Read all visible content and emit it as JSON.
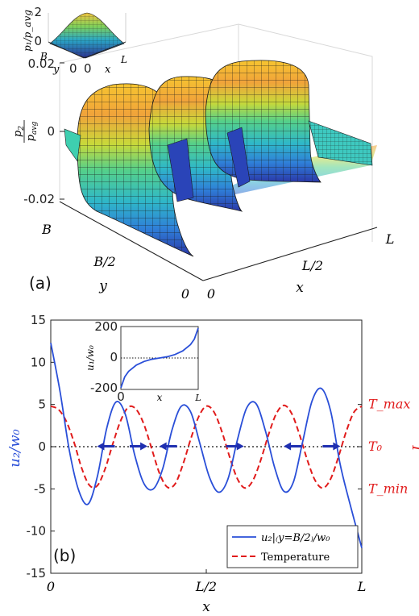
{
  "chart_data": [
    {
      "type": "surface",
      "panel_label": "(a)",
      "zlabel": "p₂/p_avg",
      "zticks": [
        "0.02",
        "0",
        "-0.02"
      ],
      "xlabel": "x",
      "xticks": [
        "0",
        "L/2",
        "L"
      ],
      "ylabel": "y",
      "yticks": [
        "0",
        "B/2",
        "B"
      ],
      "inset": {
        "type": "surface",
        "zlabel": "p₁/p_avg",
        "zticks": [
          "2",
          "0"
        ],
        "xlabel": "x",
        "xticks": [
          "0",
          "L"
        ],
        "ylabel": "y",
        "yticks": [
          "B",
          "0"
        ]
      }
    },
    {
      "type": "line",
      "panel_label": "(b)",
      "xlabel": "x",
      "xticks": [
        "0",
        "L/2",
        "L"
      ],
      "xlim": [
        0,
        1
      ],
      "ylabel_left": "u₂/w₀",
      "ylim_left": [
        -15,
        15
      ],
      "yticks_left": [
        "15",
        "10",
        "5",
        "0",
        "-5",
        "-10",
        "-15"
      ],
      "ylabel_right": "T",
      "yticks_right": [
        "T_max",
        "T₀",
        "T_min"
      ],
      "colors": {
        "velocity": "#2a4fd8",
        "temperature": "#e11b1b",
        "arrow": "#1f2fb0"
      },
      "series": [
        {
          "name": "u₂|₍y=B/2₎/w₀",
          "color": "#2a4fd8",
          "style": "solid",
          "x": [
            0,
            0.03,
            0.06,
            0.09,
            0.12,
            0.15,
            0.18,
            0.21,
            0.24,
            0.27,
            0.3,
            0.33,
            0.36,
            0.39,
            0.42,
            0.45,
            0.48,
            0.51,
            0.54,
            0.57,
            0.6,
            0.63,
            0.66,
            0.69,
            0.72,
            0.75,
            0.78,
            0.81,
            0.84,
            0.87,
            0.9,
            0.93,
            0.96,
            1.0
          ],
          "values": [
            12.3,
            6.5,
            -0.5,
            -5.2,
            -6.8,
            -3.5,
            2.2,
            5.3,
            3.8,
            -1.0,
            -4.4,
            -5.0,
            -2.6,
            2.0,
            4.8,
            4.1,
            0.3,
            -3.6,
            -5.4,
            -3.8,
            0.8,
            4.6,
            5.1,
            1.9,
            -2.5,
            -5.3,
            -4.2,
            0.6,
            5.4,
            6.9,
            4.2,
            -2.0,
            -6.5,
            -12.0
          ]
        },
        {
          "name": "Temperature",
          "color": "#e11b1b",
          "style": "dashed",
          "x": [
            0,
            0.025,
            0.05,
            0.075,
            0.1,
            0.125,
            0.15,
            0.175,
            0.2,
            0.225,
            0.25,
            0.275,
            0.3,
            0.325,
            0.35,
            0.375,
            0.4,
            0.425,
            0.45,
            0.475,
            0.5,
            0.525,
            0.55,
            0.575,
            0.6,
            0.625,
            0.65,
            0.675,
            0.7,
            0.725,
            0.75,
            0.775,
            0.8,
            0.825,
            0.85,
            0.875,
            0.9,
            0.925,
            0.95,
            0.975,
            1.0
          ],
          "values": [
            4.8,
            4.4,
            3.0,
            0.5,
            -2.6,
            -4.6,
            -4.6,
            -2.6,
            0.4,
            3.1,
            4.7,
            4.4,
            2.6,
            -0.3,
            -3.2,
            -4.8,
            -4.4,
            -2.1,
            0.9,
            3.5,
            4.8,
            4.1,
            1.8,
            -1.2,
            -3.8,
            -4.9,
            -4.0,
            -1.6,
            1.4,
            3.9,
            4.9,
            3.9,
            1.4,
            -1.6,
            -4.0,
            -4.9,
            -3.8,
            -1.2,
            1.8,
            4.1,
            4.8
          ]
        }
      ],
      "zero_line": {
        "y": 0,
        "style": "dotted"
      },
      "arrows": [
        {
          "x": 0.18,
          "direction": "left"
        },
        {
          "x": 0.28,
          "direction": "right"
        },
        {
          "x": 0.38,
          "direction": "left"
        },
        {
          "x": 0.59,
          "direction": "right"
        },
        {
          "x": 0.78,
          "direction": "left"
        },
        {
          "x": 0.9,
          "direction": "right"
        }
      ],
      "legend": {
        "position": "bottom-right",
        "entries": [
          "u₂|₍y=B/2₎/w₀",
          "Temperature"
        ]
      },
      "inset": {
        "type": "line",
        "ylabel": "u₁/w₀",
        "xlabel": "x",
        "xticks": [
          "0",
          "L"
        ],
        "ylim": [
          -200,
          200
        ],
        "yticks": [
          "200",
          "0",
          "-200"
        ],
        "x": [
          0,
          0.05,
          0.1,
          0.2,
          0.3,
          0.4,
          0.5,
          0.6,
          0.7,
          0.8,
          0.9,
          0.95,
          1.0
        ],
        "values": [
          -190,
          -120,
          -85,
          -45,
          -22,
          -8,
          0,
          8,
          22,
          45,
          85,
          120,
          190
        ]
      }
    }
  ]
}
